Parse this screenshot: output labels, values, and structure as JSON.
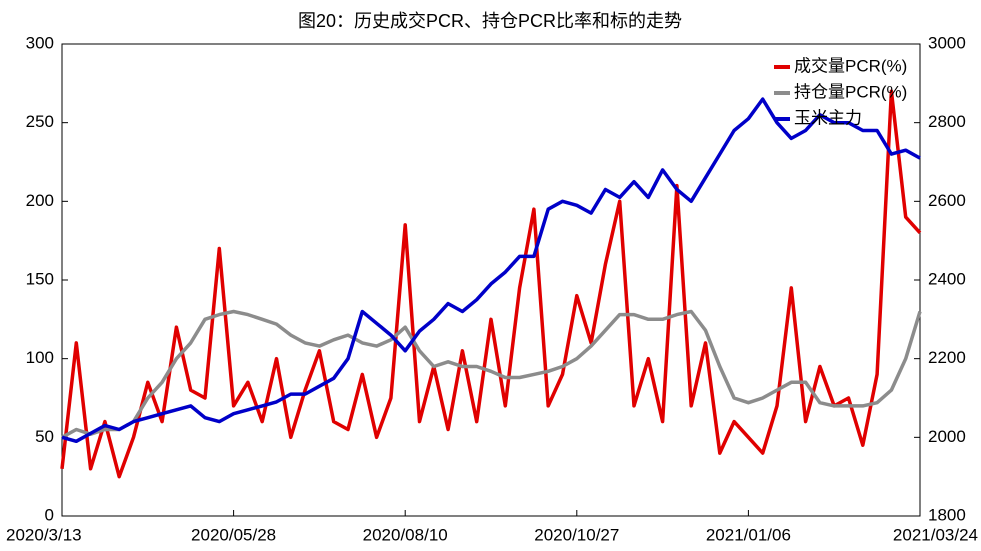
{
  "chart_data": {
    "type": "line",
    "title": "图20：历史成交PCR、持仓PCR比率和标的走势",
    "categories": [
      "2020/3/13",
      null,
      null,
      null,
      null,
      null,
      null,
      null,
      null,
      null,
      null,
      null,
      "2020/05/28",
      null,
      null,
      null,
      null,
      null,
      null,
      null,
      null,
      null,
      null,
      null,
      "2020/08/10",
      null,
      null,
      null,
      null,
      null,
      null,
      null,
      null,
      null,
      null,
      null,
      "2020/10/27",
      null,
      null,
      null,
      null,
      null,
      null,
      null,
      null,
      null,
      null,
      null,
      "2021/01/06",
      null,
      null,
      null,
      null,
      null,
      null,
      null,
      null,
      null,
      null,
      null,
      "2021/03/24"
    ],
    "series": [
      {
        "name": "成交量PCR(%)",
        "color": "#e00000",
        "values": [
          30,
          110,
          30,
          60,
          25,
          50,
          85,
          60,
          120,
          80,
          75,
          170,
          70,
          85,
          60,
          100,
          50,
          80,
          105,
          60,
          55,
          90,
          50,
          75,
          185,
          60,
          95,
          55,
          105,
          60,
          125,
          70,
          145,
          195,
          70,
          90,
          140,
          110,
          160,
          200,
          70,
          100,
          60,
          210,
          70,
          110,
          40,
          60,
          50,
          40,
          70,
          145,
          60,
          95,
          70,
          75,
          45,
          90,
          270,
          190,
          180
        ]
      },
      {
        "name": "持仓量PCR(%)",
        "color": "#8c8c8c",
        "values": [
          50,
          55,
          52,
          55,
          55,
          60,
          75,
          85,
          100,
          110,
          125,
          128,
          130,
          128,
          125,
          122,
          115,
          110,
          108,
          112,
          115,
          110,
          108,
          112,
          120,
          105,
          95,
          98,
          95,
          95,
          92,
          88,
          88,
          90,
          92,
          95,
          100,
          108,
          118,
          128,
          128,
          125,
          125,
          128,
          130,
          118,
          95,
          75,
          72,
          75,
          80,
          85,
          85,
          72,
          70,
          70,
          70,
          72,
          80,
          100,
          130
        ]
      },
      {
        "name": "玉米主力",
        "color": "#0000c8",
        "axis": "y2",
        "values": [
          2000,
          1990,
          2010,
          2030,
          2020,
          2040,
          2050,
          2060,
          2070,
          2080,
          2050,
          2040,
          2060,
          2070,
          2080,
          2090,
          2110,
          2110,
          2130,
          2150,
          2200,
          2320,
          2290,
          2260,
          2220,
          2270,
          2300,
          2340,
          2320,
          2350,
          2390,
          2420,
          2460,
          2460,
          2580,
          2600,
          2590,
          2570,
          2630,
          2610,
          2650,
          2610,
          2680,
          2630,
          2600,
          2660,
          2720,
          2780,
          2810,
          2860,
          2800,
          2760,
          2780,
          2820,
          2800,
          2800,
          2780,
          2780,
          2720,
          2730,
          2710
        ]
      }
    ],
    "ylim": [
      0,
      300
    ],
    "yticks": [
      0,
      50,
      100,
      150,
      200,
      250,
      300
    ],
    "y2lim": [
      1800,
      3000
    ],
    "y2ticks": [
      1800,
      2000,
      2200,
      2400,
      2600,
      2800,
      3000
    ],
    "legend": "upper right"
  }
}
